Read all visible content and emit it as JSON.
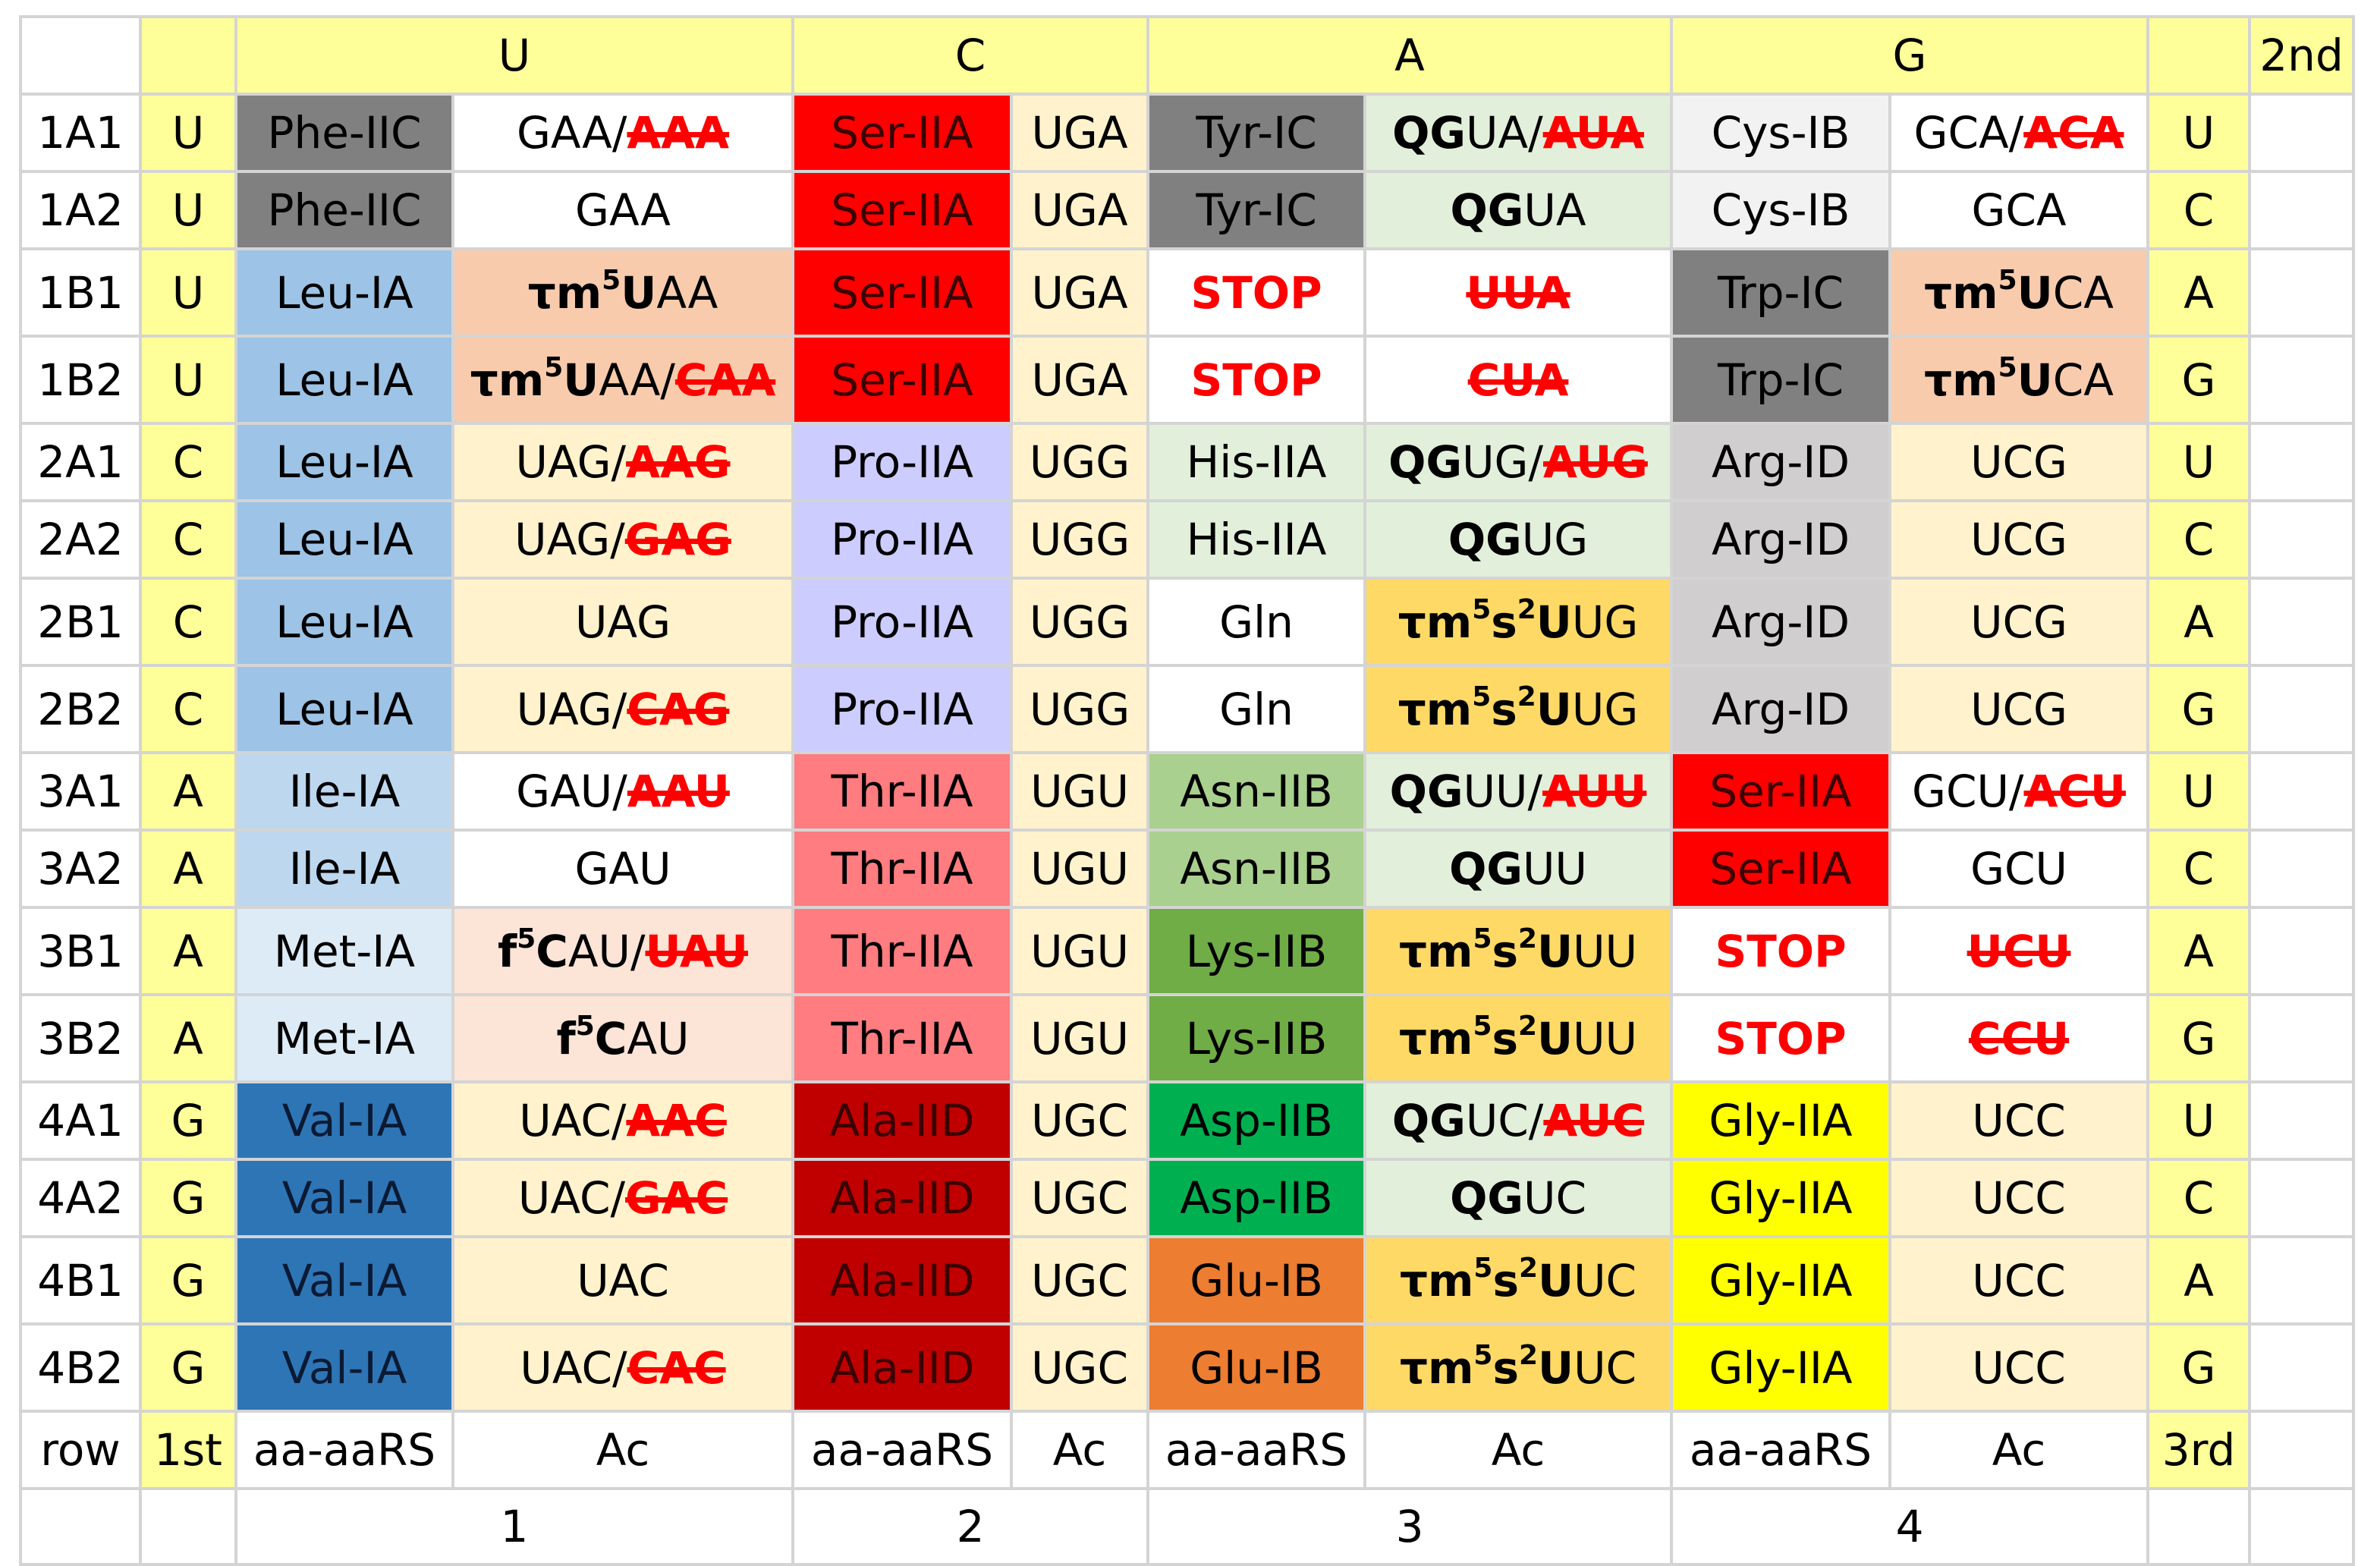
{
  "header": {
    "second_label": "2nd",
    "bases": [
      "U",
      "C",
      "A",
      "G"
    ]
  },
  "footer": {
    "row_label": "row",
    "first_label": "1st",
    "aa_label": "aa-aaRS",
    "ac_label": "Ac",
    "third_label": "3rd",
    "column_numbers": [
      "1",
      "2",
      "3",
      "4"
    ]
  },
  "colors": {
    "header_yellow": "#ffff99",
    "strike_red": "#ff0000",
    "phe_trp_tyr_grey": "#808080",
    "ser_red": "#ff0000",
    "ala_darkred": "#c00000",
    "gly_yellow": "#ffff00",
    "val_blue": "#2e75b6"
  },
  "rows": [
    {
      "id": "1A1",
      "first": "U",
      "third": "U",
      "tall": false,
      "c1": {
        "aa": "Phe-IIC",
        "aa_bg": "#808080",
        "ac_bg": "#ffffff",
        "ac": [
          {
            "t": "GAA/"
          },
          {
            "t": "AAA",
            "s": "x"
          }
        ]
      },
      "c2": {
        "aa": "Ser-IIA",
        "aa_bg": "#ff0000",
        "ac_bg": "#fff2cc",
        "ac": [
          {
            "t": "UGA"
          }
        ]
      },
      "c3": {
        "aa": "Tyr-IC",
        "aa_bg": "#808080",
        "ac_bg": "#e2efda",
        "ac": [
          {
            "t": "QG",
            "s": "b"
          },
          {
            "t": "UA/"
          },
          {
            "t": "AUA",
            "s": "x"
          }
        ]
      },
      "c4": {
        "aa": "Cys-IB",
        "aa_bg": "#f2f2f2",
        "ac_bg": "#ffffff",
        "ac": [
          {
            "t": "GCA/"
          },
          {
            "t": "ACA",
            "s": "x"
          }
        ]
      }
    },
    {
      "id": "1A2",
      "first": "U",
      "third": "C",
      "tall": false,
      "c1": {
        "aa": "Phe-IIC",
        "aa_bg": "#808080",
        "ac_bg": "#ffffff",
        "ac": [
          {
            "t": "GAA"
          }
        ]
      },
      "c2": {
        "aa": "Ser-IIA",
        "aa_bg": "#ff0000",
        "ac_bg": "#fff2cc",
        "ac": [
          {
            "t": "UGA"
          }
        ]
      },
      "c3": {
        "aa": "Tyr-IC",
        "aa_bg": "#808080",
        "ac_bg": "#e2efda",
        "ac": [
          {
            "t": "QG",
            "s": "b"
          },
          {
            "t": "UA"
          }
        ]
      },
      "c4": {
        "aa": "Cys-IB",
        "aa_bg": "#f2f2f2",
        "ac_bg": "#ffffff",
        "ac": [
          {
            "t": "GCA"
          }
        ]
      }
    },
    {
      "id": "1B1",
      "first": "U",
      "third": "A",
      "tall": true,
      "c1": {
        "aa": "Leu-IA",
        "aa_bg": "#9dc3e6",
        "ac_bg": "#f8cbad",
        "ac": [
          {
            "t": "τm",
            "s": "b"
          },
          {
            "t": "5",
            "s": "sup"
          },
          {
            "t": "U",
            "s": "b"
          },
          {
            "t": "AA"
          }
        ]
      },
      "c2": {
        "aa": "Ser-IIA",
        "aa_bg": "#ff0000",
        "ac_bg": "#fff2cc",
        "ac": [
          {
            "t": "UGA"
          }
        ]
      },
      "c3": {
        "aa": "STOP",
        "aa_bg": "#ffffff",
        "ac_bg": "#ffffff",
        "stop": true,
        "ac": [
          {
            "t": "UUA",
            "s": "x"
          }
        ]
      },
      "c4": {
        "aa": "Trp-IC",
        "aa_bg": "#808080",
        "ac_bg": "#f8cbad",
        "ac": [
          {
            "t": "τm",
            "s": "b"
          },
          {
            "t": "5",
            "s": "sup"
          },
          {
            "t": "U",
            "s": "b"
          },
          {
            "t": "CA"
          }
        ]
      }
    },
    {
      "id": "1B2",
      "first": "U",
      "third": "G",
      "tall": true,
      "c1": {
        "aa": "Leu-IA",
        "aa_bg": "#9dc3e6",
        "ac_bg": "#f8cbad",
        "ac": [
          {
            "t": "τm",
            "s": "b"
          },
          {
            "t": "5",
            "s": "sup"
          },
          {
            "t": "U",
            "s": "b"
          },
          {
            "t": "AA/"
          },
          {
            "t": "CAA",
            "s": "x"
          }
        ]
      },
      "c2": {
        "aa": "Ser-IIA",
        "aa_bg": "#ff0000",
        "ac_bg": "#fff2cc",
        "ac": [
          {
            "t": "UGA"
          }
        ]
      },
      "c3": {
        "aa": "STOP",
        "aa_bg": "#ffffff",
        "ac_bg": "#ffffff",
        "stop": true,
        "ac": [
          {
            "t": "CUA",
            "s": "x"
          }
        ]
      },
      "c4": {
        "aa": "Trp-IC",
        "aa_bg": "#808080",
        "ac_bg": "#f8cbad",
        "ac": [
          {
            "t": "τm",
            "s": "b"
          },
          {
            "t": "5",
            "s": "sup"
          },
          {
            "t": "U",
            "s": "b"
          },
          {
            "t": "CA"
          }
        ]
      }
    },
    {
      "id": "2A1",
      "first": "C",
      "third": "U",
      "tall": false,
      "c1": {
        "aa": "Leu-IA",
        "aa_bg": "#9dc3e6",
        "ac_bg": "#fff2cc",
        "ac": [
          {
            "t": "UAG/"
          },
          {
            "t": "AAG",
            "s": "x"
          }
        ]
      },
      "c2": {
        "aa": "Pro-IIA",
        "aa_bg": "#ccccff",
        "ac_bg": "#fff2cc",
        "ac": [
          {
            "t": "UGG"
          }
        ]
      },
      "c3": {
        "aa": "His-IIA",
        "aa_bg": "#e2efda",
        "ac_bg": "#e2efda",
        "ac": [
          {
            "t": "QG",
            "s": "b"
          },
          {
            "t": "UG/"
          },
          {
            "t": "AUG",
            "s": "x"
          }
        ]
      },
      "c4": {
        "aa": "Arg-ID",
        "aa_bg": "#d0cece",
        "ac_bg": "#fff2cc",
        "ac": [
          {
            "t": "UCG"
          }
        ]
      }
    },
    {
      "id": "2A2",
      "first": "C",
      "third": "C",
      "tall": false,
      "c1": {
        "aa": "Leu-IA",
        "aa_bg": "#9dc3e6",
        "ac_bg": "#fff2cc",
        "ac": [
          {
            "t": "UAG/"
          },
          {
            "t": "GAG",
            "s": "x"
          }
        ]
      },
      "c2": {
        "aa": "Pro-IIA",
        "aa_bg": "#ccccff",
        "ac_bg": "#fff2cc",
        "ac": [
          {
            "t": "UGG"
          }
        ]
      },
      "c3": {
        "aa": "His-IIA",
        "aa_bg": "#e2efda",
        "ac_bg": "#e2efda",
        "ac": [
          {
            "t": "QG",
            "s": "b"
          },
          {
            "t": "UG"
          }
        ]
      },
      "c4": {
        "aa": "Arg-ID",
        "aa_bg": "#d0cece",
        "ac_bg": "#fff2cc",
        "ac": [
          {
            "t": "UCG"
          }
        ]
      }
    },
    {
      "id": "2B1",
      "first": "C",
      "third": "A",
      "tall": true,
      "c1": {
        "aa": "Leu-IA",
        "aa_bg": "#9dc3e6",
        "ac_bg": "#fff2cc",
        "ac": [
          {
            "t": "UAG"
          }
        ]
      },
      "c2": {
        "aa": "Pro-IIA",
        "aa_bg": "#ccccff",
        "ac_bg": "#fff2cc",
        "ac": [
          {
            "t": "UGG"
          }
        ]
      },
      "c3": {
        "aa": "Gln",
        "aa_bg": "#ffffff",
        "ac_bg": "#ffd966",
        "ac": [
          {
            "t": "τm",
            "s": "b"
          },
          {
            "t": "5",
            "s": "sup"
          },
          {
            "t": "s",
            "s": "b"
          },
          {
            "t": "2",
            "s": "sup"
          },
          {
            "t": "U",
            "s": "b"
          },
          {
            "t": "UG"
          }
        ]
      },
      "c4": {
        "aa": "Arg-ID",
        "aa_bg": "#d0cece",
        "ac_bg": "#fff2cc",
        "ac": [
          {
            "t": "UCG"
          }
        ]
      }
    },
    {
      "id": "2B2",
      "first": "C",
      "third": "G",
      "tall": true,
      "c1": {
        "aa": "Leu-IA",
        "aa_bg": "#9dc3e6",
        "ac_bg": "#fff2cc",
        "ac": [
          {
            "t": "UAG/"
          },
          {
            "t": "CAG",
            "s": "x"
          }
        ]
      },
      "c2": {
        "aa": "Pro-IIA",
        "aa_bg": "#ccccff",
        "ac_bg": "#fff2cc",
        "ac": [
          {
            "t": "UGG"
          }
        ]
      },
      "c3": {
        "aa": "Gln",
        "aa_bg": "#ffffff",
        "ac_bg": "#ffd966",
        "ac": [
          {
            "t": "τm",
            "s": "b"
          },
          {
            "t": "5",
            "s": "sup"
          },
          {
            "t": "s",
            "s": "b"
          },
          {
            "t": "2",
            "s": "sup"
          },
          {
            "t": "U",
            "s": "b"
          },
          {
            "t": "UG"
          }
        ]
      },
      "c4": {
        "aa": "Arg-ID",
        "aa_bg": "#d0cece",
        "ac_bg": "#fff2cc",
        "ac": [
          {
            "t": "UCG"
          }
        ]
      }
    },
    {
      "id": "3A1",
      "first": "A",
      "third": "U",
      "tall": false,
      "c1": {
        "aa": "Ile-IA",
        "aa_bg": "#bdd7ee",
        "ac_bg": "#ffffff",
        "ac": [
          {
            "t": "GAU/"
          },
          {
            "t": "AAU",
            "s": "x"
          }
        ]
      },
      "c2": {
        "aa": "Thr-IIA",
        "aa_bg": "#ff7c80",
        "ac_bg": "#fff2cc",
        "ac": [
          {
            "t": "UGU"
          }
        ]
      },
      "c3": {
        "aa": "Asn-IIB",
        "aa_bg": "#a9d08e",
        "ac_bg": "#e2efda",
        "ac": [
          {
            "t": "QG",
            "s": "b"
          },
          {
            "t": "UU/"
          },
          {
            "t": "AUU",
            "s": "x"
          }
        ]
      },
      "c4": {
        "aa": "Ser-IIA",
        "aa_bg": "#ff0000",
        "ac_bg": "#ffffff",
        "ac": [
          {
            "t": "GCU/"
          },
          {
            "t": "ACU",
            "s": "x"
          }
        ]
      }
    },
    {
      "id": "3A2",
      "first": "A",
      "third": "C",
      "tall": false,
      "c1": {
        "aa": "Ile-IA",
        "aa_bg": "#bdd7ee",
        "ac_bg": "#ffffff",
        "ac": [
          {
            "t": "GAU"
          }
        ]
      },
      "c2": {
        "aa": "Thr-IIA",
        "aa_bg": "#ff7c80",
        "ac_bg": "#fff2cc",
        "ac": [
          {
            "t": "UGU"
          }
        ]
      },
      "c3": {
        "aa": "Asn-IIB",
        "aa_bg": "#a9d08e",
        "ac_bg": "#e2efda",
        "ac": [
          {
            "t": "QG",
            "s": "b"
          },
          {
            "t": "UU"
          }
        ]
      },
      "c4": {
        "aa": "Ser-IIA",
        "aa_bg": "#ff0000",
        "ac_bg": "#ffffff",
        "ac": [
          {
            "t": "GCU"
          }
        ]
      }
    },
    {
      "id": "3B1",
      "first": "A",
      "third": "A",
      "tall": true,
      "c1": {
        "aa": "Met-IA",
        "aa_bg": "#ddebf7",
        "ac_bg": "#fce4d6",
        "ac": [
          {
            "t": "f",
            "s": "b"
          },
          {
            "t": "5",
            "s": "sup"
          },
          {
            "t": "C",
            "s": "b"
          },
          {
            "t": "AU/"
          },
          {
            "t": "UAU",
            "s": "x"
          }
        ]
      },
      "c2": {
        "aa": "Thr-IIA",
        "aa_bg": "#ff7c80",
        "ac_bg": "#fff2cc",
        "ac": [
          {
            "t": "UGU"
          }
        ]
      },
      "c3": {
        "aa": "Lys-IIB",
        "aa_bg": "#70ad47",
        "ac_bg": "#ffd966",
        "ac": [
          {
            "t": "τm",
            "s": "b"
          },
          {
            "t": "5",
            "s": "sup"
          },
          {
            "t": "s",
            "s": "b"
          },
          {
            "t": "2",
            "s": "sup"
          },
          {
            "t": "U",
            "s": "b"
          },
          {
            "t": "UU"
          }
        ]
      },
      "c4": {
        "aa": "STOP",
        "aa_bg": "#ffffff",
        "ac_bg": "#ffffff",
        "stop": true,
        "ac": [
          {
            "t": "UCU",
            "s": "x"
          }
        ]
      }
    },
    {
      "id": "3B2",
      "first": "A",
      "third": "G",
      "tall": true,
      "c1": {
        "aa": "Met-IA",
        "aa_bg": "#ddebf7",
        "ac_bg": "#fce4d6",
        "ac": [
          {
            "t": "f",
            "s": "b"
          },
          {
            "t": "5",
            "s": "sup"
          },
          {
            "t": "C",
            "s": "b"
          },
          {
            "t": "AU"
          }
        ]
      },
      "c2": {
        "aa": "Thr-IIA",
        "aa_bg": "#ff7c80",
        "ac_bg": "#fff2cc",
        "ac": [
          {
            "t": "UGU"
          }
        ]
      },
      "c3": {
        "aa": "Lys-IIB",
        "aa_bg": "#70ad47",
        "ac_bg": "#ffd966",
        "ac": [
          {
            "t": "τm",
            "s": "b"
          },
          {
            "t": "5",
            "s": "sup"
          },
          {
            "t": "s",
            "s": "b"
          },
          {
            "t": "2",
            "s": "sup"
          },
          {
            "t": "U",
            "s": "b"
          },
          {
            "t": "UU"
          }
        ]
      },
      "c4": {
        "aa": "STOP",
        "aa_bg": "#ffffff",
        "ac_bg": "#ffffff",
        "stop": true,
        "ac": [
          {
            "t": "CCU",
            "s": "x"
          }
        ]
      }
    },
    {
      "id": "4A1",
      "first": "G",
      "third": "U",
      "tall": false,
      "c1": {
        "aa": "Val-IA",
        "aa_bg": "#2e75b6",
        "ac_bg": "#fff2cc",
        "ac": [
          {
            "t": "UAC/"
          },
          {
            "t": "AAC",
            "s": "x"
          }
        ]
      },
      "c2": {
        "aa": "Ala-IID",
        "aa_bg": "#c00000",
        "ac_bg": "#fff2cc",
        "ac": [
          {
            "t": "UGC"
          }
        ]
      },
      "c3": {
        "aa": "Asp-IIB",
        "aa_bg": "#00b050",
        "ac_bg": "#e2efda",
        "ac": [
          {
            "t": "QG",
            "s": "b"
          },
          {
            "t": "UC/"
          },
          {
            "t": "AUC",
            "s": "x"
          }
        ]
      },
      "c4": {
        "aa": "Gly-IIA",
        "aa_bg": "#ffff00",
        "ac_bg": "#fff2cc",
        "ac": [
          {
            "t": "UCC"
          }
        ]
      }
    },
    {
      "id": "4A2",
      "first": "G",
      "third": "C",
      "tall": false,
      "c1": {
        "aa": "Val-IA",
        "aa_bg": "#2e75b6",
        "ac_bg": "#fff2cc",
        "ac": [
          {
            "t": "UAC/"
          },
          {
            "t": "GAC",
            "s": "x"
          }
        ]
      },
      "c2": {
        "aa": "Ala-IID",
        "aa_bg": "#c00000",
        "ac_bg": "#fff2cc",
        "ac": [
          {
            "t": "UGC"
          }
        ]
      },
      "c3": {
        "aa": "Asp-IIB",
        "aa_bg": "#00b050",
        "ac_bg": "#e2efda",
        "ac": [
          {
            "t": "QG",
            "s": "b"
          },
          {
            "t": "UC"
          }
        ]
      },
      "c4": {
        "aa": "Gly-IIA",
        "aa_bg": "#ffff00",
        "ac_bg": "#fff2cc",
        "ac": [
          {
            "t": "UCC"
          }
        ]
      }
    },
    {
      "id": "4B1",
      "first": "G",
      "third": "A",
      "tall": true,
      "c1": {
        "aa": "Val-IA",
        "aa_bg": "#2e75b6",
        "ac_bg": "#fff2cc",
        "ac": [
          {
            "t": "UAC"
          }
        ]
      },
      "c2": {
        "aa": "Ala-IID",
        "aa_bg": "#c00000",
        "ac_bg": "#fff2cc",
        "ac": [
          {
            "t": "UGC"
          }
        ]
      },
      "c3": {
        "aa": "Glu-IB",
        "aa_bg": "#ed7d31",
        "ac_bg": "#ffd966",
        "ac": [
          {
            "t": "τm",
            "s": "b"
          },
          {
            "t": "5",
            "s": "sup"
          },
          {
            "t": "s",
            "s": "b"
          },
          {
            "t": "2",
            "s": "sup"
          },
          {
            "t": "U",
            "s": "b"
          },
          {
            "t": "UC"
          }
        ]
      },
      "c4": {
        "aa": "Gly-IIA",
        "aa_bg": "#ffff00",
        "ac_bg": "#fff2cc",
        "ac": [
          {
            "t": "UCC"
          }
        ]
      }
    },
    {
      "id": "4B2",
      "first": "G",
      "third": "G",
      "tall": true,
      "c1": {
        "aa": "Val-IA",
        "aa_bg": "#2e75b6",
        "ac_bg": "#fff2cc",
        "ac": [
          {
            "t": "UAC/"
          },
          {
            "t": "CAC",
            "s": "x"
          }
        ]
      },
      "c2": {
        "aa": "Ala-IID",
        "aa_bg": "#c00000",
        "ac_bg": "#fff2cc",
        "ac": [
          {
            "t": "UGC"
          }
        ]
      },
      "c3": {
        "aa": "Glu-IB",
        "aa_bg": "#ed7d31",
        "ac_bg": "#ffd966",
        "ac": [
          {
            "t": "τm",
            "s": "b"
          },
          {
            "t": "5",
            "s": "sup"
          },
          {
            "t": "s",
            "s": "b"
          },
          {
            "t": "2",
            "s": "sup"
          },
          {
            "t": "U",
            "s": "b"
          },
          {
            "t": "UC"
          }
        ]
      },
      "c4": {
        "aa": "Gly-IIA",
        "aa_bg": "#ffff00",
        "ac_bg": "#fff2cc",
        "ac": [
          {
            "t": "UCC"
          }
        ]
      }
    }
  ]
}
